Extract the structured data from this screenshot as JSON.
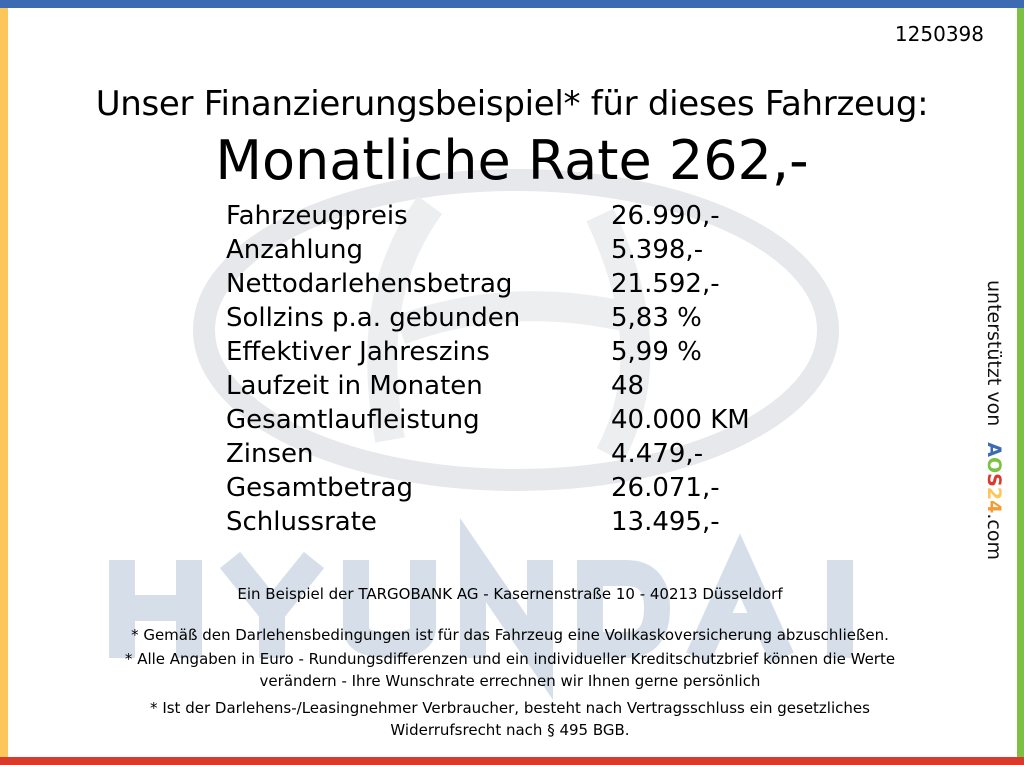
{
  "colors": {
    "top": "#3d6bb3",
    "left": "#fcc65a",
    "right": "#7dc142",
    "bottom": "#d93a2b",
    "watermark": "#d6dfe9"
  },
  "watermark": {
    "brand": "HYUNDAI"
  },
  "offer_id": "1250398",
  "headline": "Unser Finanzierungsbeispiel* für dieses Fahrzeug:",
  "monthly_rate": "Monatliche Rate 262,-",
  "rows": [
    {
      "label": "Fahrzeugpreis",
      "value": "26.990,-"
    },
    {
      "label": "Anzahlung",
      "value": "5.398,-"
    },
    {
      "label": "Nettodarlehensbetrag",
      "value": "21.592,-"
    },
    {
      "label": "Sollzins p.a. gebunden",
      "value": "5,83 %"
    },
    {
      "label": "Effektiver Jahreszins",
      "value": "5,99 %"
    },
    {
      "label": "Laufzeit in Monaten",
      "value": "48"
    },
    {
      "label": "Gesamtlaufleistung",
      "value": "40.000 KM"
    },
    {
      "label": "Zinsen",
      "value": "4.479,-"
    },
    {
      "label": "Gesamtbetrag",
      "value": "26.071,-"
    },
    {
      "label": "Schlussrate",
      "value": "13.495,-"
    }
  ],
  "footer": {
    "bank": "Ein Beispiel der TARGOBANK AG - Kasernenstraße 10 - 40213 Düsseldorf",
    "note1": "* Gemäß den Darlehensbedingungen ist für das Fahrzeug eine Vollkaskoversicherung abzuschließen.",
    "note2a": "* Alle Angaben in Euro - Rundungsdifferenzen und ein individueller Kreditschutzbrief können die Werte",
    "note2b": "verändern - Ihre Wunschrate errechnen wir Ihnen gerne persönlich",
    "note3a": "* Ist der Darlehens-/Leasingnehmer Verbraucher, besteht nach Vertragsschluss ein gesetzliches",
    "note3b": "Widerrufsrecht nach § 495 BGB."
  },
  "sponsor": {
    "prefix": "unterstützt von",
    "logo": "AOS24",
    "suffix": ".com"
  }
}
